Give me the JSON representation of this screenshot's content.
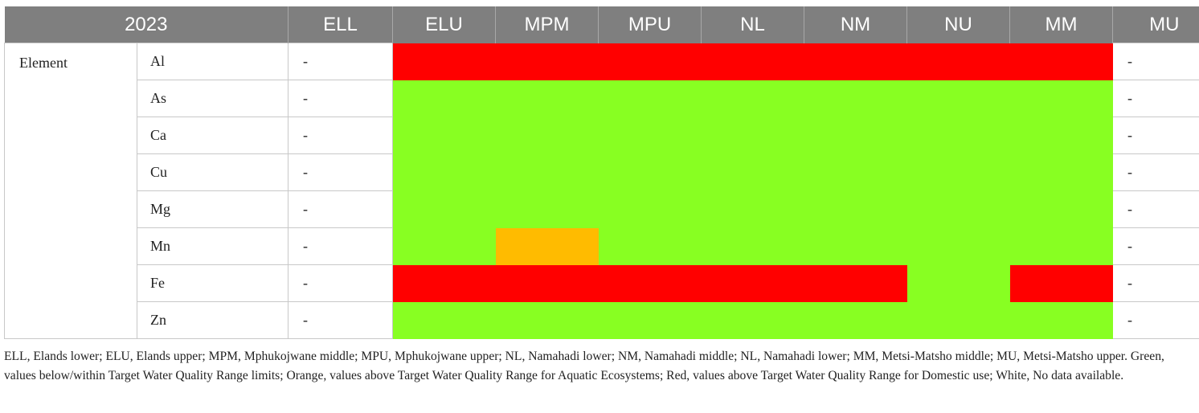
{
  "table": {
    "year": "2023",
    "row_group_label": "Element",
    "headers": [
      "ELL",
      "ELU",
      "MPM",
      "MPU",
      "NL",
      "NM",
      "NU",
      "MM",
      "MU"
    ],
    "no_data_text": "-",
    "colors": {
      "green": "#88ff22",
      "orange": "#ffbb00",
      "red": "#ff0000"
    },
    "rows": [
      {
        "element": "Al",
        "ell": "-",
        "statuses": [
          "red",
          "red",
          "red",
          "red",
          "red",
          "red",
          "red"
        ],
        "mu": "-"
      },
      {
        "element": "As",
        "ell": "-",
        "statuses": [
          "green",
          "green",
          "green",
          "green",
          "green",
          "green",
          "green"
        ],
        "mu": "-"
      },
      {
        "element": "Ca",
        "ell": "-",
        "statuses": [
          "green",
          "green",
          "green",
          "green",
          "green",
          "green",
          "green"
        ],
        "mu": "-"
      },
      {
        "element": "Cu",
        "ell": "-",
        "statuses": [
          "green",
          "green",
          "green",
          "green",
          "green",
          "green",
          "green"
        ],
        "mu": "-"
      },
      {
        "element": "Mg",
        "ell": "-",
        "statuses": [
          "green",
          "green",
          "green",
          "green",
          "green",
          "green",
          "green"
        ],
        "mu": "-"
      },
      {
        "element": "Mn",
        "ell": "-",
        "statuses": [
          "green",
          "orange",
          "green",
          "green",
          "green",
          "green",
          "green"
        ],
        "mu": "-"
      },
      {
        "element": "Fe",
        "ell": "-",
        "statuses": [
          "red",
          "red",
          "red",
          "red",
          "red",
          "green",
          "red"
        ],
        "mu": "-"
      },
      {
        "element": "Zn",
        "ell": "-",
        "statuses": [
          "green",
          "green",
          "green",
          "green",
          "green",
          "green",
          "green"
        ],
        "mu": "-"
      }
    ]
  },
  "caption": "ELL, Elands lower; ELU, Elands upper; MPM, Mphukojwane middle; MPU, Mphukojwane upper; NL, Namahadi lower; NM, Namahadi middle; NL, Namahadi lower; MM, Metsi-Matsho middle; MU, Metsi-Matsho upper. Green, values below/within Target Water Quality Range limits; Orange, values above Target Water Quality Range for Aquatic Ecosystems; Red, values above Target Water Quality Range for Domestic use; White, No data available."
}
